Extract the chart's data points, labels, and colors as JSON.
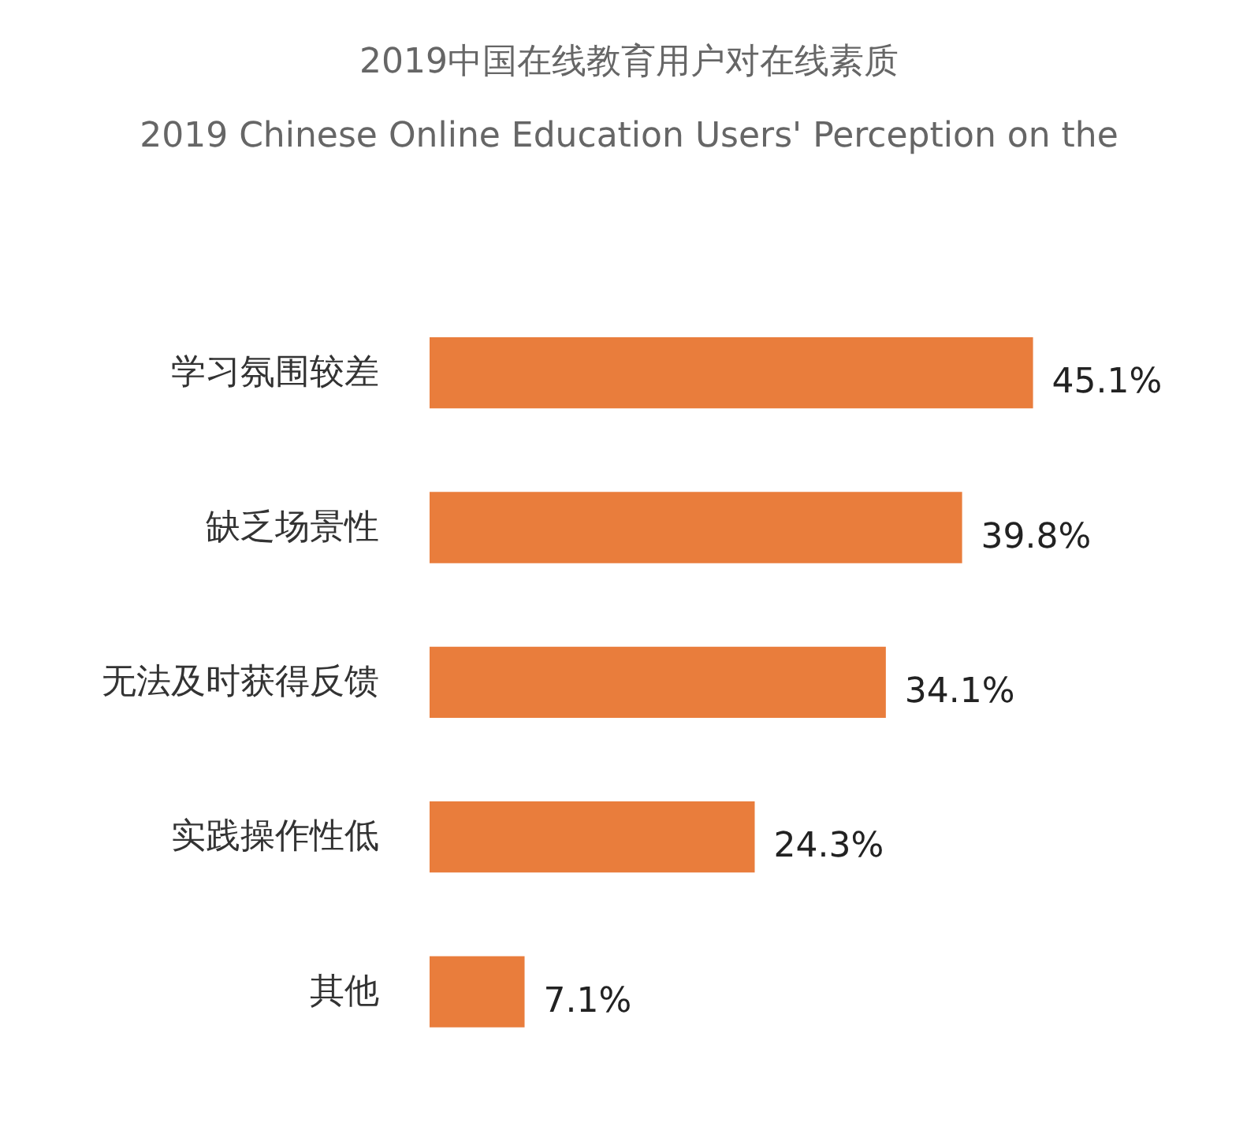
{
  "chart_data": {
    "type": "bar",
    "orientation": "horizontal",
    "title": "2019中国在线教育用户对在线素质",
    "subtitle": "2019 Chinese Online Education Users' Perception on the",
    "categories": [
      "学习氛围较差",
      "缺乏场景性",
      "无法及时获得反馈",
      "实践操作性低",
      "其他"
    ],
    "values": [
      45.1,
      39.8,
      34.1,
      24.3,
      7.1
    ],
    "color": "#e97d3c",
    "value_labels": [
      "45.1%",
      "39.8%",
      "34.1%",
      "24.3%",
      "7.1%"
    ],
    "tick_labels": "y"
  }
}
